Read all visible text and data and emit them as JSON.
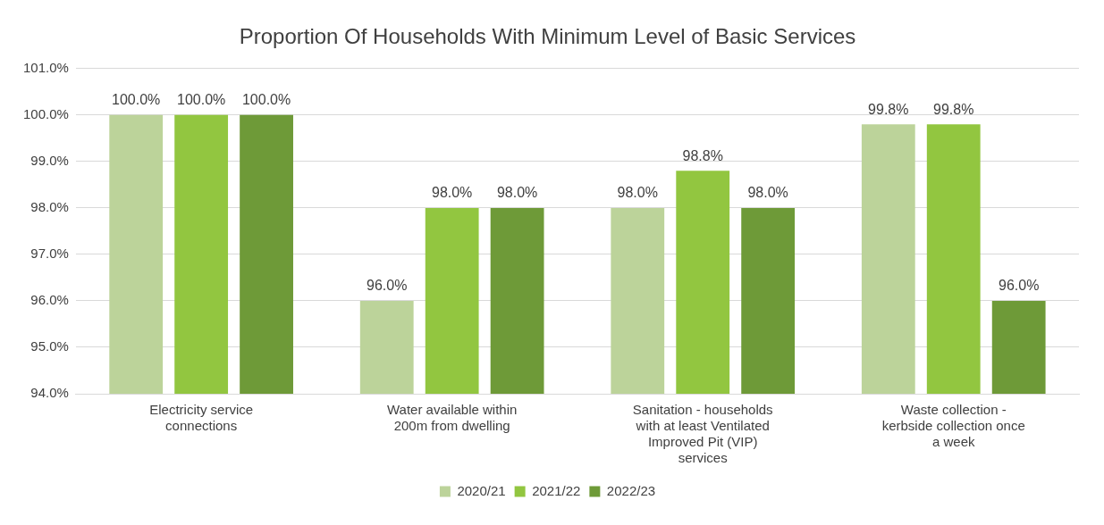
{
  "chart_data": {
    "type": "bar",
    "title": "Proportion Of Households With Minimum Level of Basic Services",
    "categories": [
      "Electricity service connections",
      "Water available within 200m from dwelling",
      "Sanitation - households with at least Ventilated Improved Pit (VIP) services",
      "Waste collection - kerbside collection once a week"
    ],
    "series": [
      {
        "name": "2020/21",
        "color": "#bcd39a",
        "values": [
          100.0,
          96.0,
          98.0,
          99.8
        ],
        "value_labels": [
          "100.0%",
          "96.0%",
          "98.0%",
          "99.8%"
        ]
      },
      {
        "name": "2021/22",
        "color": "#92c640",
        "values": [
          100.0,
          98.0,
          98.8,
          99.8
        ],
        "value_labels": [
          "100.0%",
          "98.0%",
          "98.8%",
          "99.8%"
        ]
      },
      {
        "name": "2022/23",
        "color": "#6e9a38",
        "values": [
          100.0,
          98.0,
          98.0,
          96.0
        ],
        "value_labels": [
          "100.0%",
          "98.0%",
          "98.0%",
          "96.0%"
        ]
      }
    ],
    "ylim": [
      94,
      101
    ],
    "yticks": [
      {
        "value": 94,
        "label": "94.0%"
      },
      {
        "value": 95,
        "label": "95.0%"
      },
      {
        "value": 96,
        "label": "96.0%"
      },
      {
        "value": 97,
        "label": "97.0%"
      },
      {
        "value": 98,
        "label": "98.0%"
      },
      {
        "value": 99,
        "label": "99.0%"
      },
      {
        "value": 100,
        "label": "100.0%"
      },
      {
        "value": 101,
        "label": "101.0%"
      }
    ],
    "grid": "y",
    "legend": "bottom"
  }
}
